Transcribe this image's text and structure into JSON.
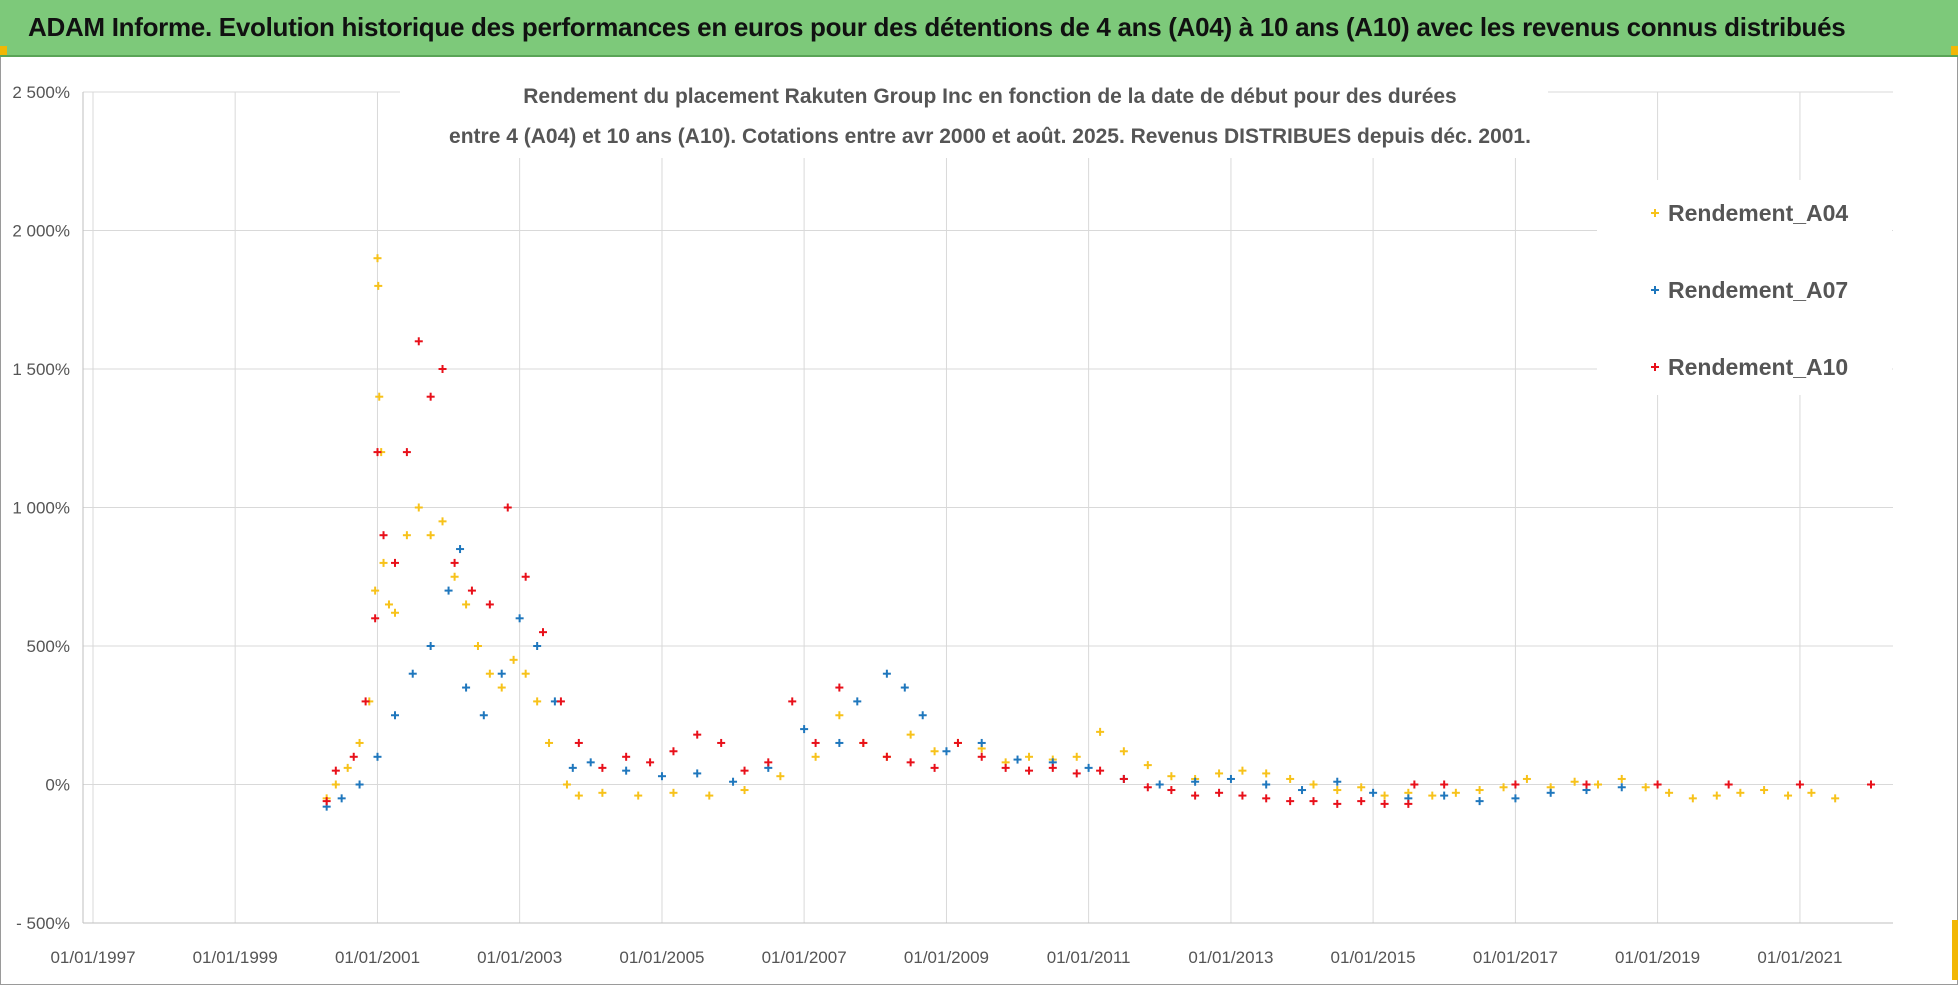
{
  "banner": {
    "title": "ADAM Informe. Evolution historique des performances en euros pour des détentions de 4 ans (A04) à 10 ans (A10) avec les revenus connus distribués"
  },
  "colors": {
    "banner_bg": "#7dc97a",
    "accent_corner": "#f2b705",
    "A04": "#f7c21a",
    "A07": "#1f77bd",
    "A10": "#e8101a",
    "grid": "#d9d9d9"
  },
  "chart_data": {
    "type": "scatter",
    "title": [
      "Rendement du placement Rakuten Group Inc en fonction de la date de début pour des durées",
      "entre 4 (A04) et 10 ans (A10). Cotations entre avr 2000 et août. 2025. Revenus DISTRIBUES depuis déc. 2001."
    ],
    "xlabel": "",
    "ylabel": "",
    "x_range": [
      "1997-01-01",
      "2022-01-01"
    ],
    "y_range": [
      -500,
      2500
    ],
    "y_unit": "%",
    "grid": true,
    "legend_position": "right",
    "x_ticks": [
      "01/01/1997",
      "01/01/1999",
      "01/01/2001",
      "01/01/2003",
      "01/01/2005",
      "01/01/2007",
      "01/01/2009",
      "01/01/2011",
      "01/01/2013",
      "01/01/2015",
      "01/01/2017",
      "01/01/2019",
      "01/01/2021"
    ],
    "y_ticks": [
      "- 500%",
      "0%",
      "500%",
      "1 000%",
      "1 500%",
      "2 000%",
      "2 500%"
    ],
    "y_tick_values": [
      -500,
      0,
      500,
      1000,
      1500,
      2000,
      2500
    ],
    "series": [
      {
        "name": "Rendement_A04",
        "key": "A04",
        "points": [
          [
            "2000-04-15",
            -50
          ],
          [
            "2000-06-01",
            0
          ],
          [
            "2000-08-01",
            60
          ],
          [
            "2000-10-01",
            150
          ],
          [
            "2000-11-20",
            300
          ],
          [
            "2000-12-20",
            700
          ],
          [
            "2001-01-01",
            1900
          ],
          [
            "2001-01-05",
            1800
          ],
          [
            "2001-01-10",
            1400
          ],
          [
            "2001-01-20",
            1200
          ],
          [
            "2001-02-01",
            800
          ],
          [
            "2001-03-01",
            650
          ],
          [
            "2001-04-01",
            620
          ],
          [
            "2001-06-01",
            900
          ],
          [
            "2001-08-01",
            1000
          ],
          [
            "2001-10-01",
            900
          ],
          [
            "2001-12-01",
            950
          ],
          [
            "2002-02-01",
            750
          ],
          [
            "2002-04-01",
            650
          ],
          [
            "2002-06-01",
            500
          ],
          [
            "2002-08-01",
            400
          ],
          [
            "2002-10-01",
            350
          ],
          [
            "2002-12-01",
            450
          ],
          [
            "2003-02-01",
            400
          ],
          [
            "2003-04-01",
            300
          ],
          [
            "2003-06-01",
            150
          ],
          [
            "2003-09-01",
            0
          ],
          [
            "2003-11-01",
            -40
          ],
          [
            "2004-03-01",
            -30
          ],
          [
            "2004-09-01",
            -40
          ],
          [
            "2005-03-01",
            -30
          ],
          [
            "2005-09-01",
            -40
          ],
          [
            "2006-03-01",
            -20
          ],
          [
            "2006-09-01",
            30
          ],
          [
            "2007-03-01",
            100
          ],
          [
            "2007-07-01",
            250
          ],
          [
            "2007-11-01",
            150
          ],
          [
            "2008-03-01",
            100
          ],
          [
            "2008-07-01",
            180
          ],
          [
            "2008-11-01",
            120
          ],
          [
            "2009-03-01",
            150
          ],
          [
            "2009-07-01",
            130
          ],
          [
            "2009-11-01",
            80
          ],
          [
            "2010-03-01",
            100
          ],
          [
            "2010-07-01",
            90
          ],
          [
            "2010-11-01",
            100
          ],
          [
            "2011-03-01",
            190
          ],
          [
            "2011-07-01",
            120
          ],
          [
            "2011-11-01",
            70
          ],
          [
            "2012-03-01",
            30
          ],
          [
            "2012-07-01",
            20
          ],
          [
            "2012-11-01",
            40
          ],
          [
            "2013-03-01",
            50
          ],
          [
            "2013-07-01",
            40
          ],
          [
            "2013-11-01",
            20
          ],
          [
            "2014-03-01",
            0
          ],
          [
            "2014-07-01",
            -20
          ],
          [
            "2014-11-01",
            -10
          ],
          [
            "2015-03-01",
            -40
          ],
          [
            "2015-07-01",
            -30
          ],
          [
            "2015-11-01",
            -40
          ],
          [
            "2016-03-01",
            -30
          ],
          [
            "2016-07-01",
            -20
          ],
          [
            "2016-11-01",
            -10
          ],
          [
            "2017-03-01",
            20
          ],
          [
            "2017-07-01",
            -10
          ],
          [
            "2017-11-01",
            10
          ],
          [
            "2018-03-01",
            0
          ],
          [
            "2018-07-01",
            20
          ],
          [
            "2018-11-01",
            -10
          ],
          [
            "2019-03-01",
            -30
          ],
          [
            "2019-07-01",
            -50
          ],
          [
            "2019-11-01",
            -40
          ],
          [
            "2020-03-01",
            -30
          ],
          [
            "2020-07-01",
            -20
          ],
          [
            "2020-11-01",
            -40
          ],
          [
            "2021-03-01",
            -30
          ],
          [
            "2021-07-01",
            -50
          ]
        ]
      },
      {
        "name": "Rendement_A07",
        "key": "A07",
        "points": [
          [
            "2000-04-15",
            -80
          ],
          [
            "2000-07-01",
            -50
          ],
          [
            "2000-10-01",
            0
          ],
          [
            "2001-01-01",
            100
          ],
          [
            "2001-04-01",
            250
          ],
          [
            "2001-07-01",
            400
          ],
          [
            "2001-10-01",
            500
          ],
          [
            "2002-01-01",
            700
          ],
          [
            "2002-03-01",
            850
          ],
          [
            "2002-04-01",
            350
          ],
          [
            "2002-07-01",
            250
          ],
          [
            "2002-10-01",
            400
          ],
          [
            "2003-01-01",
            600
          ],
          [
            "2003-04-01",
            500
          ],
          [
            "2003-07-01",
            300
          ],
          [
            "2003-10-01",
            60
          ],
          [
            "2004-01-01",
            80
          ],
          [
            "2004-07-01",
            50
          ],
          [
            "2005-01-01",
            30
          ],
          [
            "2005-07-01",
            40
          ],
          [
            "2006-01-01",
            10
          ],
          [
            "2006-07-01",
            60
          ],
          [
            "2007-01-01",
            200
          ],
          [
            "2007-07-01",
            150
          ],
          [
            "2007-10-01",
            300
          ],
          [
            "2008-03-01",
            400
          ],
          [
            "2008-06-01",
            350
          ],
          [
            "2008-09-01",
            250
          ],
          [
            "2009-01-01",
            120
          ],
          [
            "2009-07-01",
            150
          ],
          [
            "2010-01-01",
            90
          ],
          [
            "2010-07-01",
            80
          ],
          [
            "2011-01-01",
            60
          ],
          [
            "2011-07-01",
            20
          ],
          [
            "2012-01-01",
            0
          ],
          [
            "2012-07-01",
            10
          ],
          [
            "2013-01-01",
            20
          ],
          [
            "2013-07-01",
            0
          ],
          [
            "2014-01-01",
            -20
          ],
          [
            "2014-07-01",
            10
          ],
          [
            "2015-01-01",
            -30
          ],
          [
            "2015-07-01",
            -50
          ],
          [
            "2016-01-01",
            -40
          ],
          [
            "2016-07-01",
            -60
          ],
          [
            "2017-01-01",
            -50
          ],
          [
            "2017-07-01",
            -30
          ],
          [
            "2018-01-01",
            -20
          ],
          [
            "2018-07-01",
            -10
          ]
        ]
      },
      {
        "name": "Rendement_A10",
        "key": "A10",
        "points": [
          [
            "2000-04-15",
            -60
          ],
          [
            "2000-06-01",
            50
          ],
          [
            "2000-09-01",
            100
          ],
          [
            "2000-11-01",
            300
          ],
          [
            "2000-12-20",
            600
          ],
          [
            "2001-01-01",
            1200
          ],
          [
            "2001-02-01",
            900
          ],
          [
            "2001-04-01",
            800
          ],
          [
            "2001-06-01",
            1200
          ],
          [
            "2001-08-01",
            1600
          ],
          [
            "2001-10-01",
            1400
          ],
          [
            "2001-12-01",
            1500
          ],
          [
            "2002-02-01",
            800
          ],
          [
            "2002-05-01",
            700
          ],
          [
            "2002-08-01",
            650
          ],
          [
            "2002-11-01",
            1000
          ],
          [
            "2003-02-01",
            750
          ],
          [
            "2003-05-01",
            550
          ],
          [
            "2003-08-01",
            300
          ],
          [
            "2003-11-01",
            150
          ],
          [
            "2004-03-01",
            60
          ],
          [
            "2004-07-01",
            100
          ],
          [
            "2004-11-01",
            80
          ],
          [
            "2005-03-01",
            120
          ],
          [
            "2005-07-01",
            180
          ],
          [
            "2005-11-01",
            150
          ],
          [
            "2006-03-01",
            50
          ],
          [
            "2006-07-01",
            80
          ],
          [
            "2006-11-01",
            300
          ],
          [
            "2007-03-01",
            150
          ],
          [
            "2007-07-01",
            350
          ],
          [
            "2007-11-01",
            150
          ],
          [
            "2008-03-01",
            100
          ],
          [
            "2008-07-01",
            80
          ],
          [
            "2008-11-01",
            60
          ],
          [
            "2009-03-01",
            150
          ],
          [
            "2009-07-01",
            100
          ],
          [
            "2009-11-01",
            60
          ],
          [
            "2010-03-01",
            50
          ],
          [
            "2010-07-01",
            60
          ],
          [
            "2010-11-01",
            40
          ],
          [
            "2011-03-01",
            50
          ],
          [
            "2011-07-01",
            20
          ],
          [
            "2011-11-01",
            -10
          ],
          [
            "2012-03-01",
            -20
          ],
          [
            "2012-07-01",
            -40
          ],
          [
            "2012-11-01",
            -30
          ],
          [
            "2013-03-01",
            -40
          ],
          [
            "2013-07-01",
            -50
          ],
          [
            "2013-11-01",
            -60
          ],
          [
            "2014-03-01",
            -60
          ],
          [
            "2014-07-01",
            -70
          ],
          [
            "2014-11-01",
            -60
          ],
          [
            "2015-03-01",
            -70
          ],
          [
            "2015-07-01",
            -70
          ],
          [
            "2015-08-01",
            0
          ],
          [
            "2016-01-01",
            0
          ],
          [
            "2017-01-01",
            0
          ],
          [
            "2018-01-01",
            0
          ],
          [
            "2019-01-01",
            0
          ],
          [
            "2020-01-01",
            0
          ],
          [
            "2021-01-01",
            0
          ],
          [
            "2022-01-01",
            0
          ]
        ]
      }
    ]
  }
}
